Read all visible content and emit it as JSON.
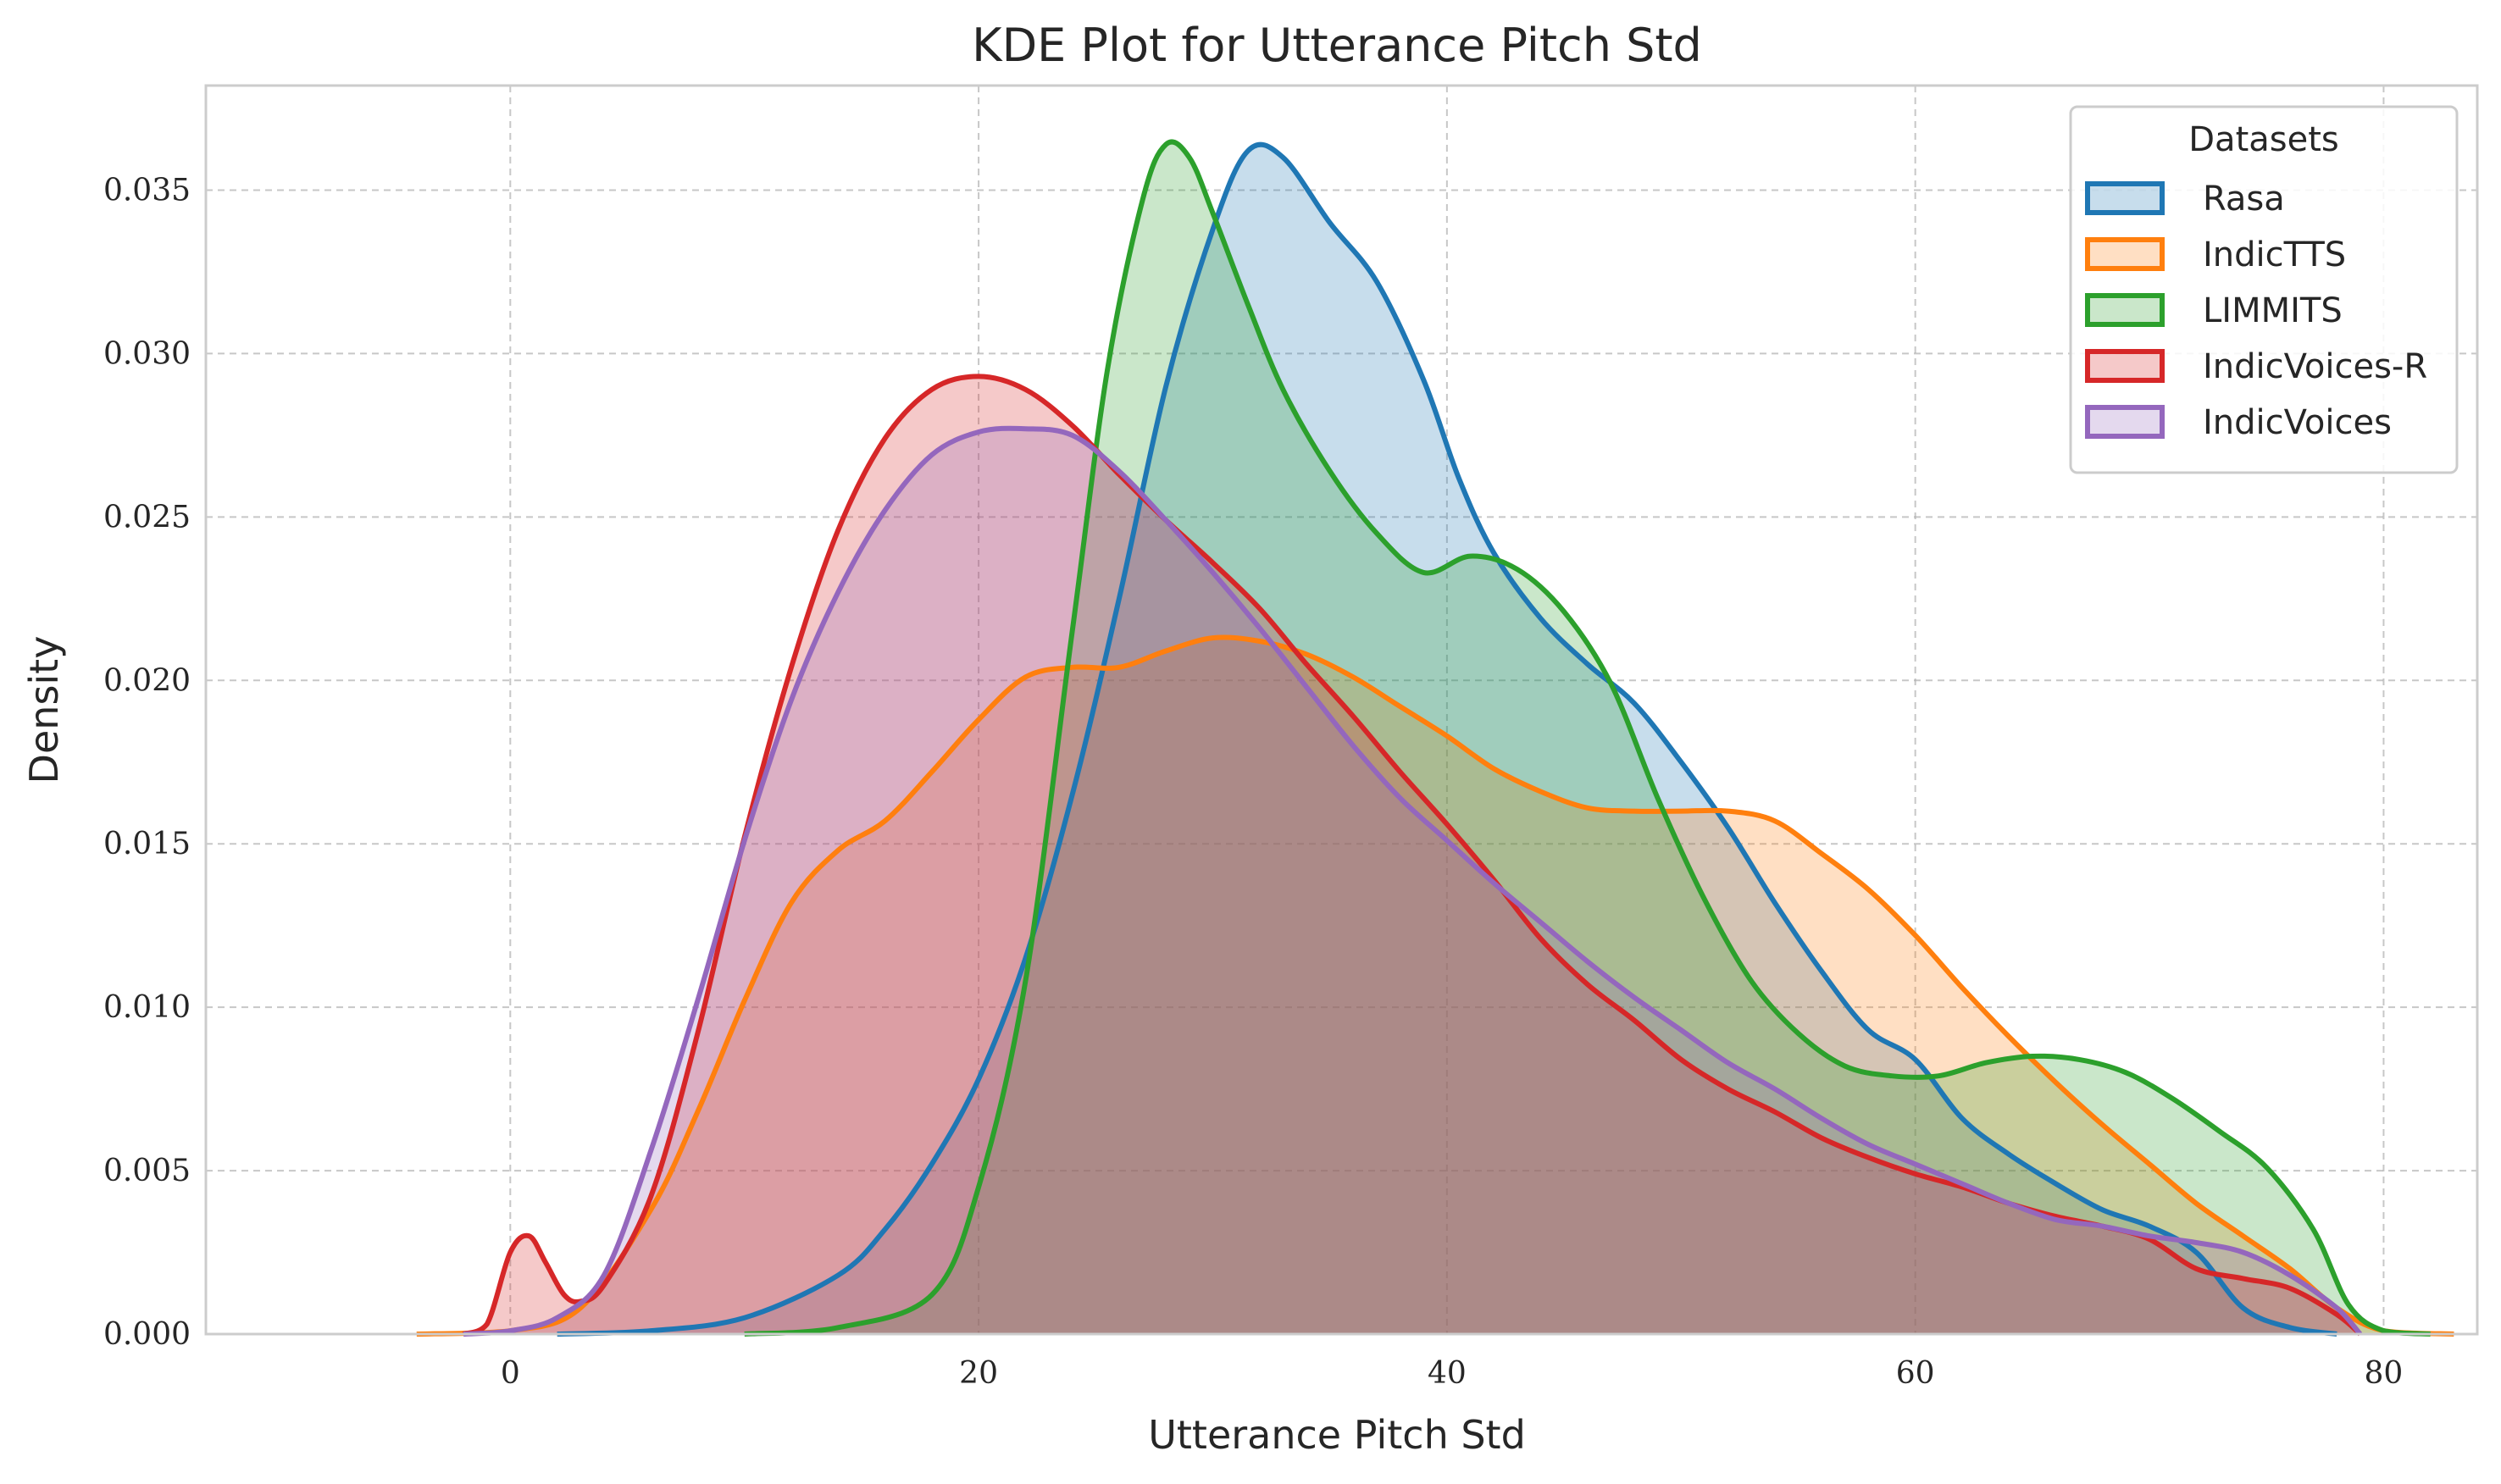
{
  "chart_data": {
    "type": "area",
    "title": "KDE Plot for Utterance Pitch Std",
    "xlabel": "Utterance Pitch Std",
    "ylabel": "Density",
    "xlim": [
      -13,
      84
    ],
    "ylim": [
      0,
      0.0382
    ],
    "xticks": [
      0,
      20,
      40,
      60,
      80
    ],
    "yticks": [
      0.0,
      0.005,
      0.01,
      0.015,
      0.02,
      0.025,
      0.03,
      0.035
    ],
    "xtick_labels": [
      "0",
      "20",
      "40",
      "60",
      "80"
    ],
    "ytick_labels": [
      "0.000",
      "0.005",
      "0.010",
      "0.015",
      "0.020",
      "0.025",
      "0.030",
      "0.035"
    ],
    "grid": true,
    "legend": {
      "title": "Datasets",
      "position": "top-right"
    },
    "series": [
      {
        "name": "Rasa",
        "color": "#1f77b4",
        "points": [
          [
            2,
            0
          ],
          [
            6,
            0.0001
          ],
          [
            10,
            0.0005
          ],
          [
            14,
            0.0018
          ],
          [
            16,
            0.0032
          ],
          [
            18,
            0.0052
          ],
          [
            20,
            0.0078
          ],
          [
            22,
            0.0115
          ],
          [
            24,
            0.0165
          ],
          [
            26,
            0.0225
          ],
          [
            28,
            0.029
          ],
          [
            30,
            0.0338
          ],
          [
            31.5,
            0.0362
          ],
          [
            33,
            0.036
          ],
          [
            35,
            0.034
          ],
          [
            37,
            0.0322
          ],
          [
            39,
            0.0292
          ],
          [
            40.5,
            0.0262
          ],
          [
            42,
            0.0239
          ],
          [
            44,
            0.0219
          ],
          [
            46,
            0.0205
          ],
          [
            48,
            0.0193
          ],
          [
            50,
            0.0175
          ],
          [
            52,
            0.0155
          ],
          [
            54,
            0.0132
          ],
          [
            56,
            0.0111
          ],
          [
            58,
            0.0093
          ],
          [
            60,
            0.0084
          ],
          [
            62,
            0.0066
          ],
          [
            64,
            0.0055
          ],
          [
            66,
            0.0046
          ],
          [
            68,
            0.0038
          ],
          [
            70,
            0.0033
          ],
          [
            72,
            0.0025
          ],
          [
            74,
            0.0008
          ],
          [
            76,
            0.0002
          ],
          [
            78,
            0
          ]
        ]
      },
      {
        "name": "IndicTTS",
        "color": "#ff7f0e",
        "points": [
          [
            -4,
            0
          ],
          [
            0,
            0.0001
          ],
          [
            3,
            0.0008
          ],
          [
            6,
            0.0038
          ],
          [
            8,
            0.0068
          ],
          [
            10,
            0.0102
          ],
          [
            12,
            0.0132
          ],
          [
            14,
            0.0148
          ],
          [
            16,
            0.0157
          ],
          [
            18,
            0.0172
          ],
          [
            20,
            0.0188
          ],
          [
            22,
            0.0201
          ],
          [
            24,
            0.0204
          ],
          [
            26,
            0.0204
          ],
          [
            28,
            0.0209
          ],
          [
            30,
            0.0213
          ],
          [
            32,
            0.0212
          ],
          [
            34,
            0.0208
          ],
          [
            36,
            0.0201
          ],
          [
            38,
            0.0192
          ],
          [
            40,
            0.0183
          ],
          [
            42,
            0.0173
          ],
          [
            44,
            0.0166
          ],
          [
            46,
            0.0161
          ],
          [
            48,
            0.016
          ],
          [
            50,
            0.016
          ],
          [
            52,
            0.016
          ],
          [
            54,
            0.0157
          ],
          [
            56,
            0.0147
          ],
          [
            58,
            0.0136
          ],
          [
            60,
            0.0122
          ],
          [
            62,
            0.0106
          ],
          [
            64,
            0.0091
          ],
          [
            66,
            0.0077
          ],
          [
            68,
            0.0064
          ],
          [
            70,
            0.0052
          ],
          [
            72,
            0.004
          ],
          [
            74,
            0.003
          ],
          [
            76,
            0.002
          ],
          [
            78,
            0.0008
          ],
          [
            80,
            0.0001
          ],
          [
            83,
            0
          ]
        ]
      },
      {
        "name": "LIMMITS",
        "color": "#2ca02c",
        "points": [
          [
            10,
            0
          ],
          [
            14,
            0.0002
          ],
          [
            18,
            0.0012
          ],
          [
            20,
            0.0045
          ],
          [
            22,
            0.0108
          ],
          [
            24,
            0.0215
          ],
          [
            25.5,
            0.0295
          ],
          [
            27,
            0.0347
          ],
          [
            28,
            0.0364
          ],
          [
            29,
            0.036
          ],
          [
            30,
            0.0343
          ],
          [
            31.5,
            0.0315
          ],
          [
            33,
            0.0289
          ],
          [
            35,
            0.0264
          ],
          [
            37,
            0.0245
          ],
          [
            39,
            0.0233
          ],
          [
            41,
            0.0238
          ],
          [
            43,
            0.0234
          ],
          [
            45,
            0.0221
          ],
          [
            47,
            0.0199
          ],
          [
            49,
            0.0164
          ],
          [
            51,
            0.0133
          ],
          [
            53,
            0.0108
          ],
          [
            55,
            0.0092
          ],
          [
            57,
            0.0082
          ],
          [
            59,
            0.0079
          ],
          [
            61,
            0.0079
          ],
          [
            63,
            0.0083
          ],
          [
            65,
            0.0085
          ],
          [
            67,
            0.0084
          ],
          [
            69,
            0.008
          ],
          [
            71,
            0.0072
          ],
          [
            73,
            0.0062
          ],
          [
            75,
            0.0051
          ],
          [
            77,
            0.0032
          ],
          [
            78.5,
            0.0009
          ],
          [
            80,
            0.0001
          ],
          [
            82,
            0
          ]
        ]
      },
      {
        "name": "IndicVoices-R",
        "color": "#d62728",
        "points": [
          [
            -2,
            0
          ],
          [
            -1,
            0.0003
          ],
          [
            0,
            0.0025
          ],
          [
            0.8,
            0.003
          ],
          [
            1.5,
            0.0022
          ],
          [
            2.3,
            0.0012
          ],
          [
            3,
            0.001
          ],
          [
            4,
            0.0015
          ],
          [
            6,
            0.0042
          ],
          [
            8,
            0.0092
          ],
          [
            10,
            0.0152
          ],
          [
            12,
            0.0204
          ],
          [
            14,
            0.0246
          ],
          [
            16,
            0.0274
          ],
          [
            18,
            0.0289
          ],
          [
            20,
            0.0293
          ],
          [
            22,
            0.0289
          ],
          [
            24,
            0.0278
          ],
          [
            26,
            0.0263
          ],
          [
            28,
            0.0249
          ],
          [
            30,
            0.0236
          ],
          [
            32,
            0.0222
          ],
          [
            34,
            0.0205
          ],
          [
            36,
            0.0189
          ],
          [
            38,
            0.0172
          ],
          [
            40,
            0.0156
          ],
          [
            42,
            0.0139
          ],
          [
            44,
            0.0121
          ],
          [
            46,
            0.0107
          ],
          [
            48,
            0.0096
          ],
          [
            50,
            0.0084
          ],
          [
            52,
            0.0075
          ],
          [
            54,
            0.0068
          ],
          [
            56,
            0.006
          ],
          [
            58,
            0.0054
          ],
          [
            60,
            0.0049
          ],
          [
            62,
            0.0045
          ],
          [
            64,
            0.004
          ],
          [
            66,
            0.0036
          ],
          [
            68,
            0.0033
          ],
          [
            70,
            0.0029
          ],
          [
            72,
            0.002
          ],
          [
            74,
            0.0017
          ],
          [
            76,
            0.0014
          ],
          [
            78,
            0.0006
          ],
          [
            79,
            0
          ]
        ]
      },
      {
        "name": "IndicVoices",
        "color": "#9467bd",
        "points": [
          [
            -2,
            0
          ],
          [
            0,
            0.0001
          ],
          [
            2,
            0.0005
          ],
          [
            4,
            0.0018
          ],
          [
            6,
            0.0056
          ],
          [
            8,
            0.0102
          ],
          [
            10,
            0.0151
          ],
          [
            12,
            0.0194
          ],
          [
            14,
            0.0227
          ],
          [
            16,
            0.0252
          ],
          [
            18,
            0.0269
          ],
          [
            20,
            0.0276
          ],
          [
            22,
            0.0277
          ],
          [
            24,
            0.0275
          ],
          [
            26,
            0.0264
          ],
          [
            28,
            0.0249
          ],
          [
            30,
            0.0233
          ],
          [
            32,
            0.0216
          ],
          [
            34,
            0.0198
          ],
          [
            36,
            0.018
          ],
          [
            38,
            0.0164
          ],
          [
            40,
            0.0151
          ],
          [
            42,
            0.0138
          ],
          [
            44,
            0.0126
          ],
          [
            46,
            0.0114
          ],
          [
            48,
            0.0103
          ],
          [
            50,
            0.0093
          ],
          [
            52,
            0.0083
          ],
          [
            54,
            0.0075
          ],
          [
            56,
            0.0066
          ],
          [
            58,
            0.0058
          ],
          [
            60,
            0.0052
          ],
          [
            62,
            0.0046
          ],
          [
            64,
            0.004
          ],
          [
            66,
            0.0035
          ],
          [
            68,
            0.0033
          ],
          [
            70,
            0.003
          ],
          [
            72,
            0.0028
          ],
          [
            74,
            0.0025
          ],
          [
            76,
            0.0018
          ],
          [
            78,
            0.0008
          ],
          [
            79,
            0
          ]
        ]
      }
    ]
  }
}
